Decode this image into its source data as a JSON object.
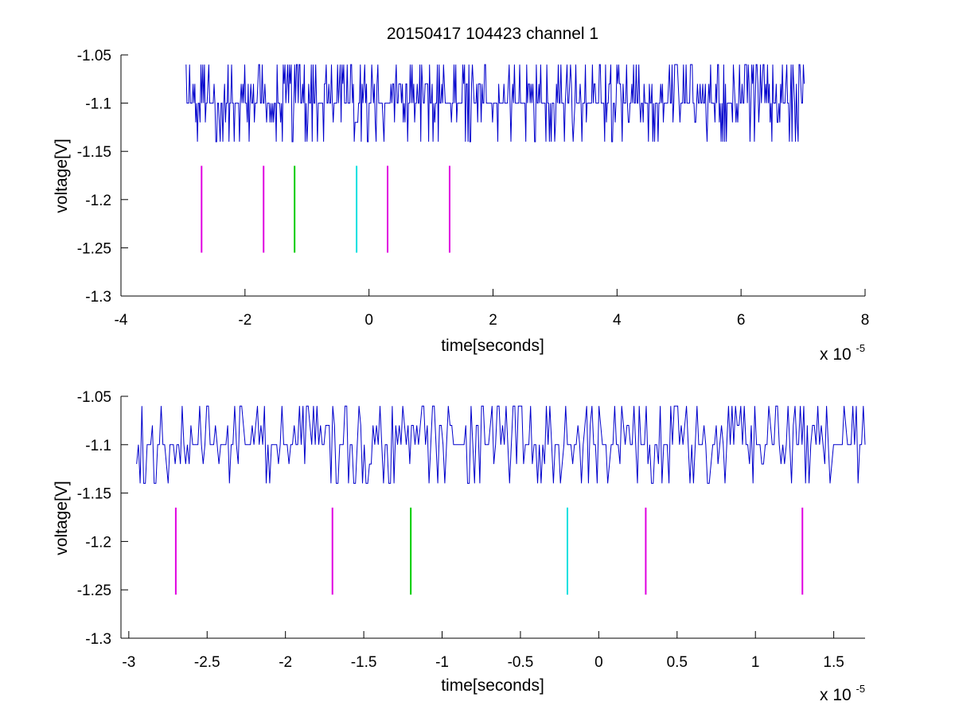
{
  "figure": {
    "title": "20150417 104423 channel 1"
  },
  "chart_data": [
    {
      "type": "line",
      "xlabel": "time[seconds]",
      "ylabel": "voltage[V]",
      "x_multiplier_text": "x 10",
      "x_multiplier_exp": "-5",
      "xlim": [
        -4,
        8
      ],
      "ylim": [
        -1.3,
        -1.05
      ],
      "xticks": [
        -4,
        -2,
        0,
        2,
        4,
        6,
        8
      ],
      "xtick_labels": [
        "-4",
        "-2",
        "0",
        "2",
        "4",
        "6",
        "8"
      ],
      "yticks": [
        -1.3,
        -1.25,
        -1.2,
        -1.15,
        -1.1,
        -1.05
      ],
      "ytick_labels": [
        "-1.3",
        "-1.25",
        "-1.2",
        "-1.15",
        "-1.1",
        "-1.05"
      ],
      "signal": {
        "color": "#0000cc",
        "x_start": -2.95,
        "x_end": 7.02,
        "baseline": -1.1,
        "levels": [
          -1.14,
          -1.12,
          -1.1,
          -1.08,
          -1.06
        ]
      },
      "markers": [
        {
          "x": -2.7,
          "y0": -1.255,
          "y1": -1.165,
          "color": "#e000e0"
        },
        {
          "x": -1.7,
          "y0": -1.255,
          "y1": -1.165,
          "color": "#e000e0"
        },
        {
          "x": -1.2,
          "y0": -1.255,
          "y1": -1.165,
          "color": "#00cc00"
        },
        {
          "x": -0.2,
          "y0": -1.255,
          "y1": -1.165,
          "color": "#00e0e0"
        },
        {
          "x": 0.3,
          "y0": -1.255,
          "y1": -1.165,
          "color": "#e000e0"
        },
        {
          "x": 1.3,
          "y0": -1.255,
          "y1": -1.165,
          "color": "#e000e0"
        }
      ]
    },
    {
      "type": "line",
      "xlabel": "time[seconds]",
      "ylabel": "voltage[V]",
      "x_multiplier_text": "x 10",
      "x_multiplier_exp": "-5",
      "xlim": [
        -3.05,
        1.7
      ],
      "ylim": [
        -1.3,
        -1.05
      ],
      "xticks": [
        -3,
        -2.5,
        -2,
        -1.5,
        -1,
        -0.5,
        0,
        0.5,
        1,
        1.5
      ],
      "xtick_labels": [
        "-3",
        "-2.5",
        "-2",
        "-1.5",
        "-1",
        "-0.5",
        "0",
        "0.5",
        "1",
        "1.5"
      ],
      "yticks": [
        -1.3,
        -1.25,
        -1.2,
        -1.15,
        -1.1,
        -1.05
      ],
      "ytick_labels": [
        "-1.3",
        "-1.25",
        "-1.2",
        "-1.15",
        "-1.1",
        "-1.05"
      ],
      "signal": {
        "color": "#0000cc",
        "x_start": -2.95,
        "x_end": 1.7,
        "baseline": -1.1,
        "levels": [
          -1.14,
          -1.12,
          -1.1,
          -1.08,
          -1.06
        ]
      },
      "markers": [
        {
          "x": -2.7,
          "y0": -1.255,
          "y1": -1.165,
          "color": "#e000e0"
        },
        {
          "x": -1.7,
          "y0": -1.255,
          "y1": -1.165,
          "color": "#e000e0"
        },
        {
          "x": -1.2,
          "y0": -1.255,
          "y1": -1.165,
          "color": "#00cc00"
        },
        {
          "x": -0.2,
          "y0": -1.255,
          "y1": -1.165,
          "color": "#00e0e0"
        },
        {
          "x": 0.3,
          "y0": -1.255,
          "y1": -1.165,
          "color": "#e000e0"
        },
        {
          "x": 1.3,
          "y0": -1.255,
          "y1": -1.165,
          "color": "#e000e0"
        }
      ]
    }
  ]
}
